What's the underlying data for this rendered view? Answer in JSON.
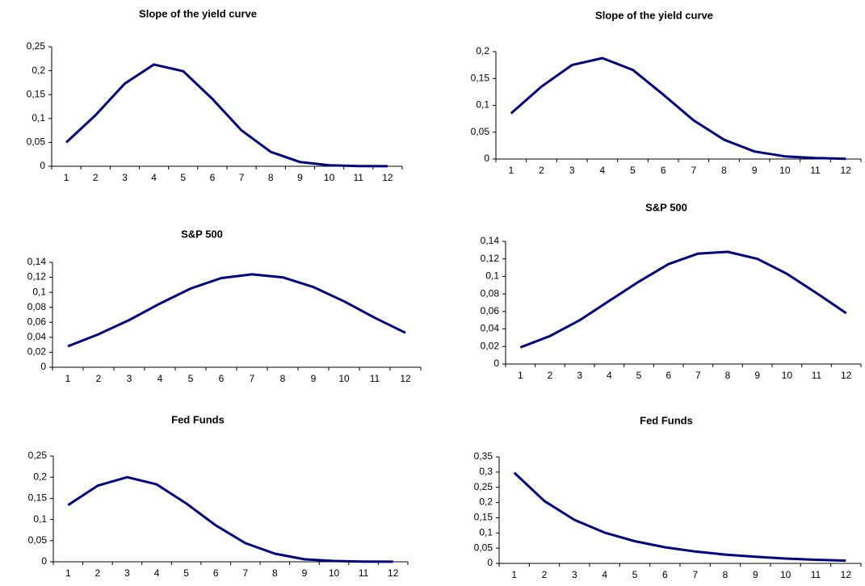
{
  "chart_data": [
    {
      "type": "line",
      "title": "Slope of the yield curve",
      "categories": [
        "1",
        "2",
        "3",
        "4",
        "5",
        "6",
        "7",
        "8",
        "9",
        "10",
        "11",
        "12"
      ],
      "series": [
        {
          "color": "#000080",
          "values": [
            0.05,
            0.107,
            0.173,
            0.213,
            0.199,
            0.141,
            0.075,
            0.03,
            0.009,
            0.002,
            0.0005,
            0.0001
          ]
        }
      ],
      "ylim": [
        0,
        0.25
      ],
      "yticks": [
        0,
        {
          "value": 0.05,
          "label": "0,05"
        },
        {
          "value": 0.1,
          "label": "0,1"
        },
        {
          "value": 0.15,
          "label": "0,15"
        },
        {
          "value": 0.2,
          "label": "0,2"
        },
        {
          "value": 0.25,
          "label": "0,25"
        }
      ]
    },
    {
      "type": "line",
      "title": "Slope of the yield curve",
      "categories": [
        "1",
        "2",
        "3",
        "4",
        "5",
        "6",
        "7",
        "8",
        "9",
        "10",
        "11",
        "12"
      ],
      "series": [
        {
          "color": "#000080",
          "values": [
            0.085,
            0.135,
            0.175,
            0.188,
            0.166,
            0.12,
            0.072,
            0.036,
            0.014,
            0.005,
            0.002,
            0.0005
          ]
        }
      ],
      "ylim": [
        0,
        0.2
      ],
      "yticks": [
        0,
        {
          "value": 0.05,
          "label": "0,05"
        },
        {
          "value": 0.1,
          "label": "0,1"
        },
        {
          "value": 0.15,
          "label": "0,15"
        },
        {
          "value": 0.2,
          "label": "0,2"
        }
      ]
    },
    {
      "type": "line",
      "title": "S&P 500",
      "categories": [
        "1",
        "2",
        "3",
        "4",
        "5",
        "6",
        "7",
        "8",
        "9",
        "10",
        "11",
        "12"
      ],
      "series": [
        {
          "color": "#000080",
          "values": [
            0.028,
            0.044,
            0.063,
            0.085,
            0.105,
            0.119,
            0.124,
            0.12,
            0.107,
            0.088,
            0.066,
            0.046
          ]
        }
      ],
      "ylim": [
        0,
        0.14
      ],
      "yticks": [
        0,
        {
          "value": 0.02,
          "label": "0,02"
        },
        {
          "value": 0.04,
          "label": "0,04"
        },
        {
          "value": 0.06,
          "label": "0,06"
        },
        {
          "value": 0.08,
          "label": "0,08"
        },
        {
          "value": 0.1,
          "label": "0,1"
        },
        {
          "value": 0.12,
          "label": "0,12"
        },
        {
          "value": 0.14,
          "label": "0,14"
        }
      ]
    },
    {
      "type": "line",
      "title": "S&P 500",
      "categories": [
        "1",
        "2",
        "3",
        "4",
        "5",
        "6",
        "7",
        "8",
        "9",
        "10",
        "11",
        "12"
      ],
      "series": [
        {
          "color": "#000080",
          "values": [
            0.019,
            0.032,
            0.05,
            0.072,
            0.094,
            0.114,
            0.126,
            0.128,
            0.12,
            0.103,
            0.081,
            0.058
          ]
        }
      ],
      "ylim": [
        0,
        0.14
      ],
      "yticks": [
        0,
        {
          "value": 0.02,
          "label": "0,02"
        },
        {
          "value": 0.04,
          "label": "0,04"
        },
        {
          "value": 0.06,
          "label": "0,06"
        },
        {
          "value": 0.08,
          "label": "0,08"
        },
        {
          "value": 0.1,
          "label": "0,1"
        },
        {
          "value": 0.12,
          "label": "0,12"
        },
        {
          "value": 0.14,
          "label": "0,14"
        }
      ]
    },
    {
      "type": "line",
      "title": "Fed Funds",
      "categories": [
        "1",
        "2",
        "3",
        "4",
        "5",
        "6",
        "7",
        "8",
        "9",
        "10",
        "11",
        "12"
      ],
      "series": [
        {
          "color": "#000080",
          "values": [
            0.134,
            0.18,
            0.2,
            0.183,
            0.138,
            0.086,
            0.044,
            0.019,
            0.006,
            0.002,
            0.0005,
            0.0001
          ]
        }
      ],
      "ylim": [
        0,
        0.25
      ],
      "yticks": [
        0,
        {
          "value": 0.05,
          "label": "0,05"
        },
        {
          "value": 0.1,
          "label": "0,1"
        },
        {
          "value": 0.15,
          "label": "0,15"
        },
        {
          "value": 0.2,
          "label": "0,2"
        },
        {
          "value": 0.25,
          "label": "0,25"
        }
      ]
    },
    {
      "type": "line",
      "title": "Fed Funds",
      "categories": [
        "1",
        "2",
        "3",
        "4",
        "5",
        "6",
        "7",
        "8",
        "9",
        "10",
        "11",
        "12"
      ],
      "series": [
        {
          "color": "#000080",
          "values": [
            0.298,
            0.205,
            0.143,
            0.101,
            0.073,
            0.053,
            0.039,
            0.029,
            0.022,
            0.016,
            0.012,
            0.009
          ]
        }
      ],
      "ylim": [
        0,
        0.35
      ],
      "yticks": [
        0,
        {
          "value": 0.05,
          "label": "0,05"
        },
        {
          "value": 0.1,
          "label": "0,1"
        },
        {
          "value": 0.15,
          "label": "0,15"
        },
        {
          "value": 0.2,
          "label": "0,2"
        },
        {
          "value": 0.25,
          "label": "0,25"
        },
        {
          "value": 0.3,
          "label": "0,3"
        },
        {
          "value": 0.35,
          "label": "0,35"
        }
      ]
    }
  ]
}
